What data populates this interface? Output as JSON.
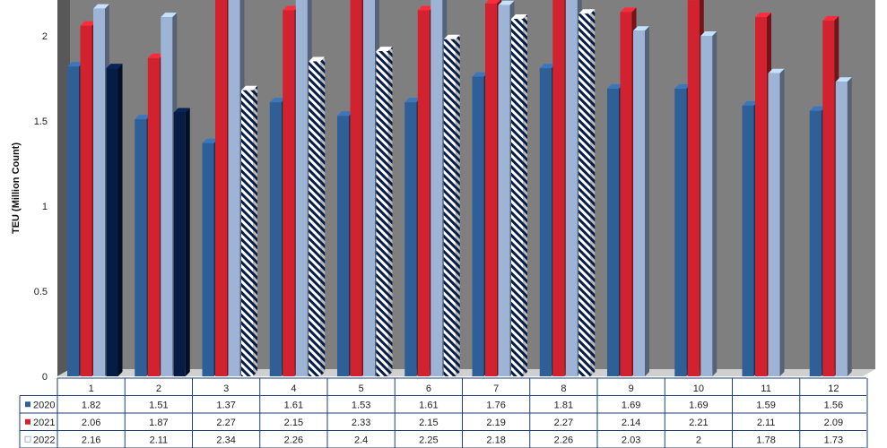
{
  "chart_data": {
    "type": "bar",
    "title": "",
    "xlabel": "",
    "ylabel": "TEU (Million Count)",
    "ylim": [
      0,
      2.2
    ],
    "yticks": [
      "0",
      "0.5",
      "1",
      "1.5",
      "2"
    ],
    "categories": [
      "1",
      "2",
      "3",
      "4",
      "5",
      "6",
      "7",
      "8",
      "9",
      "10",
      "11",
      "12"
    ],
    "series": [
      {
        "name": "2020",
        "color": "#2e5f96",
        "values": [
          1.82,
          1.51,
          1.37,
          1.61,
          1.53,
          1.61,
          1.76,
          1.81,
          1.69,
          1.69,
          1.59,
          1.56
        ],
        "labels": [
          "1.82",
          "1.51",
          "1.37",
          "1.61",
          "1.53",
          "1.61",
          "1.76",
          "1.81",
          "1.69",
          "1.69",
          "1.59",
          "1.56"
        ]
      },
      {
        "name": "2021",
        "color": "#d22230",
        "values": [
          2.06,
          1.87,
          2.27,
          2.15,
          2.33,
          2.15,
          2.19,
          2.27,
          2.14,
          2.21,
          2.11,
          2.09
        ],
        "labels": [
          "2.06",
          "1.87",
          "2.27",
          "2.15",
          "2.33",
          "2.15",
          "2.19",
          "2.27",
          "2.14",
          "2.21",
          "2.11",
          "2.09"
        ]
      },
      {
        "name": "2022",
        "color": "#9db4d6",
        "values": [
          2.16,
          2.11,
          2.34,
          2.26,
          2.4,
          2.25,
          2.18,
          2.26,
          2.03,
          2.0,
          1.78,
          1.73
        ],
        "labels": [
          "2.16",
          "2.11",
          "2.34",
          "2.26",
          "2.4",
          "2.25",
          "2.18",
          "2.26",
          "2.03",
          "2",
          "1.78",
          "1.73"
        ]
      },
      {
        "name": "",
        "color": "#061c44",
        "pattern": "diagonal-stripes",
        "values": [
          1.81,
          1.55,
          1.68,
          1.85,
          1.91,
          1.98,
          2.1,
          2.13,
          null,
          null,
          null,
          null
        ]
      }
    ],
    "grid": false,
    "legend": "table-left",
    "colors": {
      "wall": "#7f7f7f",
      "floor": "#d0d0d0",
      "table_border": "#1f3f73"
    }
  }
}
